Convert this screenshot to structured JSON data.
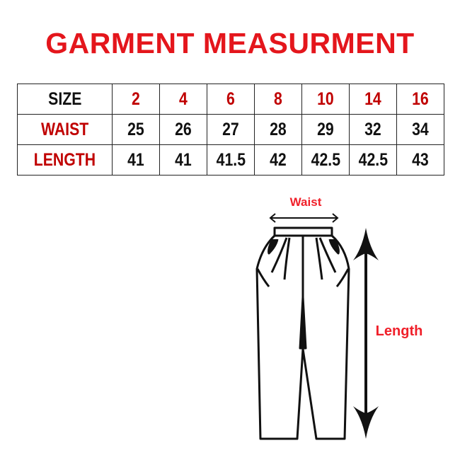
{
  "title": "GARMENT MEASURMENT",
  "table": {
    "size_label": "SIZE",
    "waist_label": "WAIST",
    "length_label": "LENGTH",
    "sizes": [
      "2",
      "4",
      "6",
      "8",
      "10",
      "14",
      "16"
    ],
    "waist": [
      "25",
      "26",
      "27",
      "28",
      "29",
      "32",
      "34"
    ],
    "length": [
      "41",
      "41",
      "41.5",
      "42",
      "42.5",
      "42.5",
      "43"
    ]
  },
  "diagram": {
    "waist_label": "Waist",
    "length_label": "Length"
  },
  "colors": {
    "title": "#e4161c",
    "header_red": "#c00000",
    "diagram_label": "#f0202a"
  }
}
